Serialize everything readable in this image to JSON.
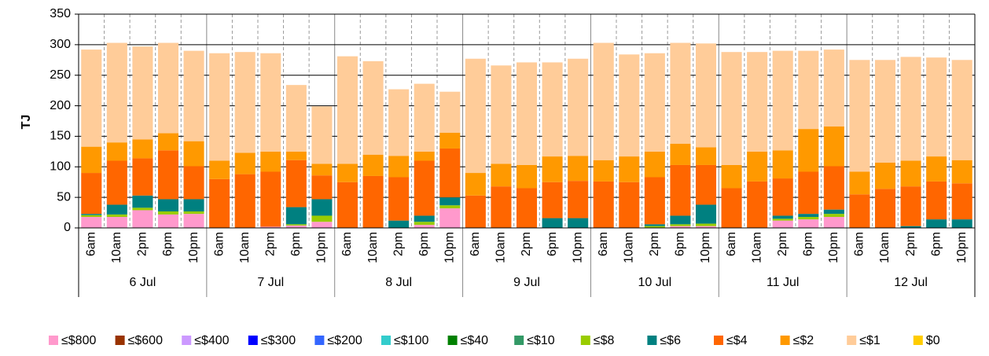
{
  "chart_data": {
    "type": "stacked_bar",
    "y_label": "TJ",
    "categories": [
      "6am",
      "10am",
      "2pm",
      "6pm",
      "10pm",
      "6am",
      "10am",
      "2pm",
      "6pm",
      "10pm",
      "6am",
      "10am",
      "2pm",
      "6pm",
      "10pm",
      "6am",
      "10am",
      "2pm",
      "6pm",
      "10pm",
      "6am",
      "10am",
      "2pm",
      "6pm",
      "10pm",
      "6am",
      "10am",
      "2pm",
      "6pm",
      "10pm",
      "6am",
      "10am",
      "2pm",
      "6pm",
      "10pm"
    ],
    "group_labels": [
      "6 Jul",
      "7 Jul",
      "8 Jul",
      "9 Jul",
      "10 Jul",
      "11 Jul",
      "12 Jul"
    ],
    "ylim": [
      0,
      350
    ],
    "yticks": [
      0,
      50,
      100,
      150,
      200,
      250,
      300,
      350
    ],
    "grid": true,
    "series": [
      {
        "name": "≤$800",
        "color": "#ff99cc",
        "values": [
          18,
          18,
          29,
          22,
          23,
          0,
          0,
          2,
          4,
          10,
          0,
          0,
          0,
          5,
          32,
          0,
          0,
          0,
          0,
          0,
          0,
          0,
          0,
          3,
          3,
          0,
          0,
          12,
          14,
          18,
          0,
          0,
          0,
          0,
          0
        ]
      },
      {
        "name": "≤$600",
        "color": "#993300",
        "values": [
          0,
          0,
          0,
          0,
          0,
          0,
          0,
          0,
          0,
          0,
          0,
          0,
          0,
          0,
          0,
          0,
          0,
          0,
          0,
          0,
          0,
          0,
          0,
          0,
          0,
          0,
          0,
          0,
          0,
          0,
          0,
          0,
          0,
          0,
          0
        ]
      },
      {
        "name": "≤$400",
        "color": "#cc99ff",
        "values": [
          0,
          0,
          0,
          0,
          0,
          0,
          0,
          0,
          0,
          0,
          0,
          0,
          0,
          0,
          0,
          0,
          0,
          0,
          0,
          0,
          0,
          0,
          0,
          0,
          0,
          0,
          0,
          0,
          0,
          0,
          0,
          0,
          0,
          0,
          0
        ]
      },
      {
        "name": "≤$300",
        "color": "#0000ff",
        "values": [
          0,
          0,
          0,
          0,
          0,
          0,
          0,
          0,
          0,
          0,
          0,
          0,
          0,
          0,
          0,
          0,
          0,
          0,
          0,
          0,
          0,
          0,
          0,
          0,
          0,
          0,
          0,
          0,
          0,
          0,
          0,
          0,
          0,
          0,
          0
        ]
      },
      {
        "name": "≤$200",
        "color": "#3366ff",
        "values": [
          0,
          0,
          0,
          0,
          0,
          0,
          0,
          0,
          0,
          0,
          0,
          0,
          0,
          0,
          0,
          0,
          0,
          0,
          0,
          0,
          0,
          0,
          0,
          0,
          0,
          0,
          0,
          0,
          0,
          0,
          0,
          0,
          0,
          0,
          0
        ]
      },
      {
        "name": "≤$100",
        "color": "#33cccc",
        "values": [
          0,
          0,
          0,
          0,
          0,
          0,
          0,
          0,
          0,
          0,
          0,
          0,
          0,
          0,
          0,
          0,
          0,
          0,
          0,
          0,
          0,
          0,
          0,
          0,
          0,
          0,
          0,
          0,
          0,
          0,
          0,
          0,
          0,
          0,
          0
        ]
      },
      {
        "name": "≤$40",
        "color": "#008000",
        "values": [
          0,
          0,
          0,
          0,
          0,
          0,
          0,
          0,
          0,
          0,
          0,
          0,
          0,
          0,
          0,
          0,
          0,
          0,
          0,
          0,
          0,
          0,
          0,
          0,
          0,
          0,
          0,
          0,
          0,
          0,
          0,
          0,
          0,
          0,
          0
        ]
      },
      {
        "name": "≤$10",
        "color": "#339966",
        "values": [
          0,
          0,
          0,
          0,
          0,
          0,
          0,
          0,
          0,
          0,
          0,
          0,
          0,
          0,
          0,
          0,
          0,
          0,
          0,
          0,
          0,
          0,
          0,
          0,
          0,
          0,
          0,
          0,
          0,
          0,
          0,
          0,
          0,
          0,
          0
        ]
      },
      {
        "name": "≤$8",
        "color": "#99cc00",
        "values": [
          3,
          4,
          4,
          5,
          4,
          0,
          0,
          0,
          2,
          10,
          0,
          0,
          0,
          5,
          5,
          0,
          0,
          0,
          0,
          0,
          0,
          0,
          3,
          3,
          4,
          0,
          0,
          3,
          4,
          5,
          0,
          0,
          0,
          0,
          0
        ]
      },
      {
        "name": "≤$6",
        "color": "#008080",
        "values": [
          2,
          16,
          20,
          20,
          20,
          0,
          0,
          0,
          28,
          27,
          0,
          0,
          12,
          10,
          13,
          0,
          0,
          0,
          16,
          16,
          0,
          0,
          3,
          14,
          31,
          0,
          0,
          5,
          5,
          7,
          0,
          0,
          3,
          14,
          14
        ]
      },
      {
        "name": "≤$4",
        "color": "#ff6600",
        "values": [
          67,
          72,
          61,
          80,
          54,
          80,
          88,
          90,
          77,
          39,
          75,
          85,
          71,
          90,
          80,
          53,
          68,
          65,
          59,
          61,
          76,
          75,
          77,
          83,
          65,
          65,
          76,
          61,
          69,
          71,
          55,
          64,
          65,
          62,
          59
        ]
      },
      {
        "name": "≤$2",
        "color": "#ff9900",
        "values": [
          43,
          30,
          31,
          28,
          41,
          30,
          35,
          33,
          14,
          19,
          30,
          35,
          35,
          15,
          26,
          37,
          37,
          38,
          42,
          41,
          35,
          42,
          42,
          35,
          29,
          38,
          49,
          46,
          70,
          65,
          37,
          43,
          42,
          41,
          38
        ]
      },
      {
        "name": "≤$1",
        "color": "#ffcc99",
        "values": [
          159,
          163,
          152,
          148,
          148,
          176,
          165,
          161,
          109,
          94,
          176,
          153,
          109,
          111,
          67,
          187,
          161,
          168,
          154,
          159,
          192,
          167,
          161,
          165,
          170,
          185,
          163,
          163,
          128,
          126,
          183,
          168,
          170,
          162,
          164
        ]
      },
      {
        "name": "$0",
        "color": "#ffcc00",
        "values": [
          0,
          0,
          0,
          0,
          0,
          0,
          0,
          0,
          0,
          0,
          0,
          0,
          0,
          0,
          0,
          0,
          0,
          0,
          0,
          0,
          0,
          0,
          0,
          0,
          0,
          0,
          0,
          0,
          0,
          0,
          0,
          0,
          0,
          0,
          0
        ]
      }
    ]
  }
}
